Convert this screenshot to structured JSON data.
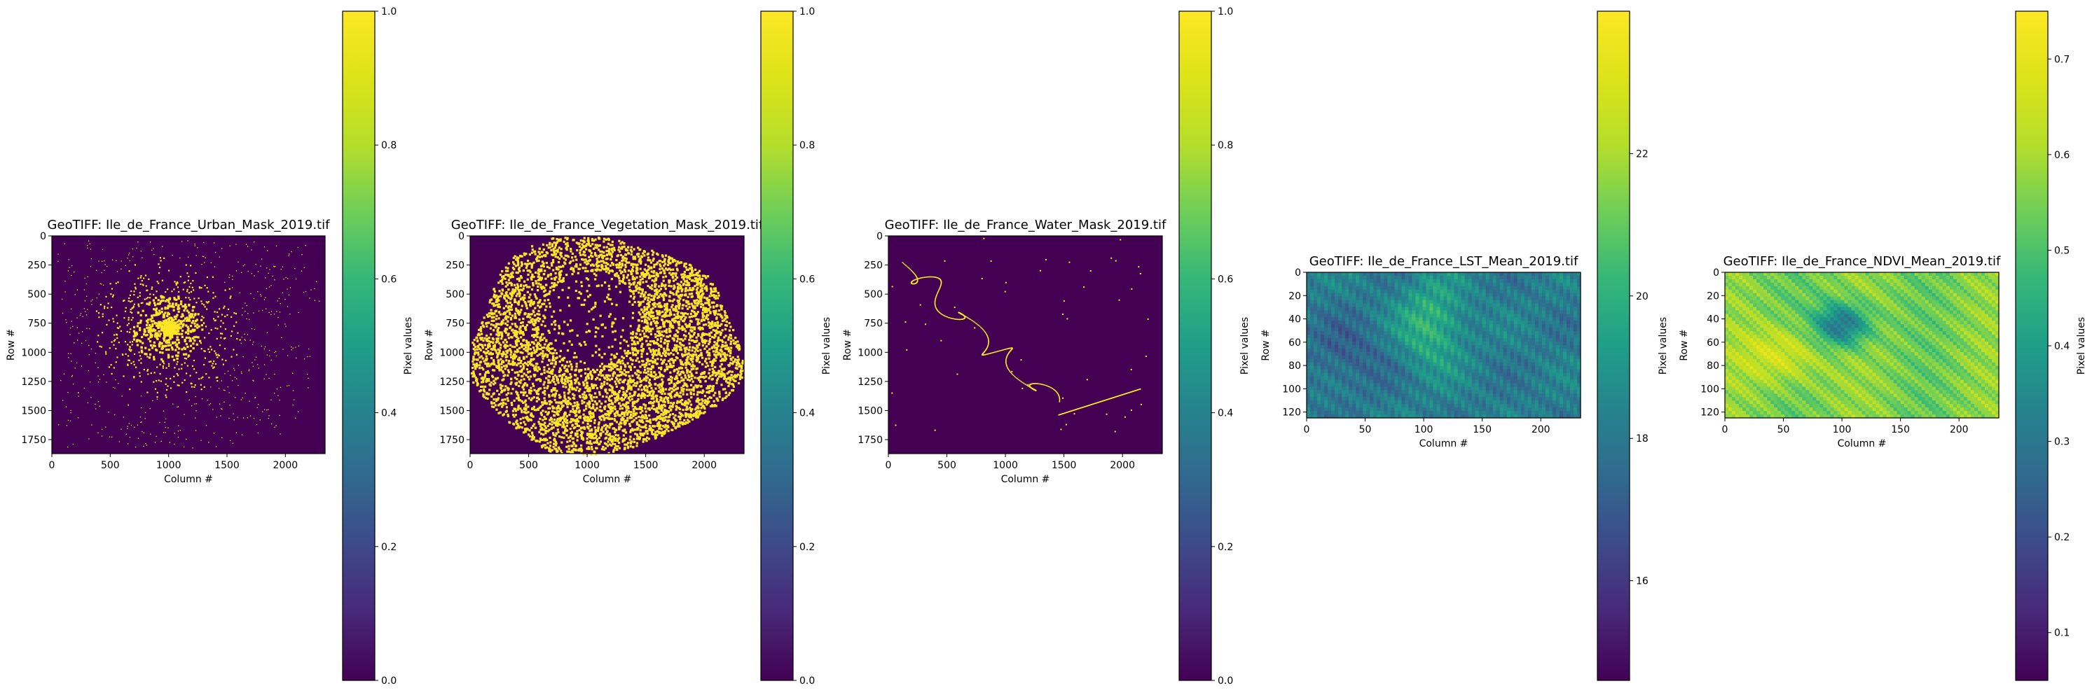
{
  "chart_data": [
    {
      "type": "heatmap",
      "title": "GeoTIFF: Ile_de_France_Urban_Mask_2019.tif",
      "xlabel": "Column #",
      "ylabel": "Row #",
      "xticks": [
        0,
        500,
        1000,
        1500,
        2000
      ],
      "yticks": [
        0,
        250,
        500,
        750,
        1000,
        1250,
        1500,
        1750
      ],
      "xlim": [
        0,
        2340
      ],
      "ylim": [
        1870,
        0
      ],
      "colorbar": {
        "label": "Pixel values",
        "range": [
          0.0,
          1.0
        ],
        "ticks": [
          "0.0",
          "0.2",
          "0.4",
          "0.6",
          "0.8",
          "1.0"
        ],
        "values": [
          0.0,
          0.2,
          0.4,
          0.6,
          0.8,
          1.0
        ]
      },
      "colormap": "viridis",
      "pattern": "urban"
    },
    {
      "type": "heatmap",
      "title": "GeoTIFF: Ile_de_France_Vegetation_Mask_2019.tif",
      "xlabel": "Column #",
      "ylabel": "Row #",
      "xticks": [
        0,
        500,
        1000,
        1500,
        2000
      ],
      "yticks": [
        0,
        250,
        500,
        750,
        1000,
        1250,
        1500,
        1750
      ],
      "xlim": [
        0,
        2340
      ],
      "ylim": [
        1870,
        0
      ],
      "colorbar": {
        "label": "Pixel values",
        "range": [
          0.0,
          1.0
        ],
        "ticks": [
          "0.0",
          "0.2",
          "0.4",
          "0.6",
          "0.8",
          "1.0"
        ],
        "values": [
          0.0,
          0.2,
          0.4,
          0.6,
          0.8,
          1.0
        ]
      },
      "colormap": "viridis",
      "pattern": "vegetation"
    },
    {
      "type": "heatmap",
      "title": "GeoTIFF: Ile_de_France_Water_Mask_2019.tif",
      "xlabel": "Column #",
      "ylabel": "Row #",
      "xticks": [
        0,
        500,
        1000,
        1500,
        2000
      ],
      "yticks": [
        0,
        250,
        500,
        750,
        1000,
        1250,
        1500,
        1750
      ],
      "xlim": [
        0,
        2340
      ],
      "ylim": [
        1870,
        0
      ],
      "colorbar": {
        "label": "Pixel values",
        "range": [
          0.0,
          1.0
        ],
        "ticks": [
          "0.0",
          "0.2",
          "0.4",
          "0.6",
          "0.8",
          "1.0"
        ],
        "values": [
          0.0,
          0.2,
          0.4,
          0.6,
          0.8,
          1.0
        ]
      },
      "colormap": "viridis",
      "pattern": "water"
    },
    {
      "type": "heatmap",
      "title": "GeoTIFF: Ile_de_France_LST_Mean_2019.tif",
      "xlabel": "Column #",
      "ylabel": "Row #",
      "xticks": [
        0,
        50,
        100,
        150,
        200
      ],
      "yticks": [
        0,
        20,
        40,
        60,
        80,
        100,
        120
      ],
      "xlim": [
        0,
        234
      ],
      "ylim": [
        125,
        0
      ],
      "colorbar": {
        "label": "Pixel values",
        "range": [
          14.6,
          24.0
        ],
        "ticks": [
          "16",
          "18",
          "20",
          "22"
        ],
        "values": [
          16,
          18,
          20,
          22
        ]
      },
      "colormap": "viridis",
      "pattern": "lst"
    },
    {
      "type": "heatmap",
      "title": "GeoTIFF: Ile_de_France_NDVI_Mean_2019.tif",
      "xlabel": "Column #",
      "ylabel": "Row #",
      "xticks": [
        0,
        50,
        100,
        150,
        200
      ],
      "yticks": [
        0,
        20,
        40,
        60,
        80,
        100,
        120
      ],
      "xlim": [
        0,
        234
      ],
      "ylim": [
        125,
        0
      ],
      "colorbar": {
        "label": "Pixel values",
        "range": [
          0.05,
          0.75
        ],
        "ticks": [
          "0.1",
          "0.2",
          "0.3",
          "0.4",
          "0.5",
          "0.6",
          "0.7"
        ],
        "values": [
          0.1,
          0.2,
          0.3,
          0.4,
          0.5,
          0.6,
          0.7
        ]
      },
      "colormap": "viridis",
      "pattern": "ndvi"
    }
  ]
}
